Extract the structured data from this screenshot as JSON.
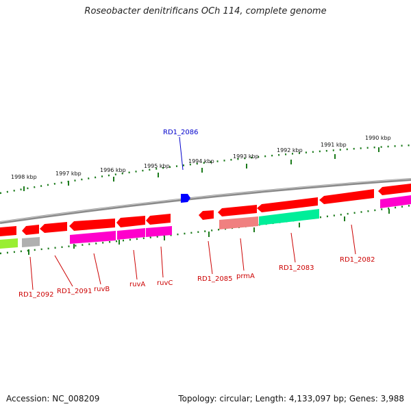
{
  "title": "Roseobacter denitrificans OCh 114, complete genome",
  "footer": {
    "accession": "Accession: NC_008209",
    "summary": "Topology: circular; Length: 4,133,097 bp; Genes: 3,988"
  },
  "colors": {
    "backbone": "#777777",
    "tick": "#1a7a1a",
    "gene_red": "#ff0000",
    "gene_magenta": "#ff00cc",
    "gene_salmon": "#f08080",
    "gene_teal": "#00ee99",
    "gene_lime": "#99ee33",
    "gene_gray": "#b0b0b0",
    "gene_blue": "#0000ff",
    "label_red": "#cc0000",
    "label_blue": "#0000cc"
  },
  "scale": {
    "labels": [
      "1998 kbp",
      "1997 kbp",
      "1996 kbp",
      "1995 kbp",
      "1994 kbp",
      "1993 kbp",
      "1992 kbp",
      "1991 kbp",
      "1990 kbp"
    ]
  },
  "genes": [
    {
      "label": "RD1_2092"
    },
    {
      "label": "RD1_2091"
    },
    {
      "label": "ruvB"
    },
    {
      "label": "ruvA"
    },
    {
      "label": "ruvC"
    },
    {
      "label": "RD1_2086"
    },
    {
      "label": "RD1_2085"
    },
    {
      "label": "prmA"
    },
    {
      "label": "RD1_2083"
    },
    {
      "label": "RD1_2082"
    }
  ]
}
